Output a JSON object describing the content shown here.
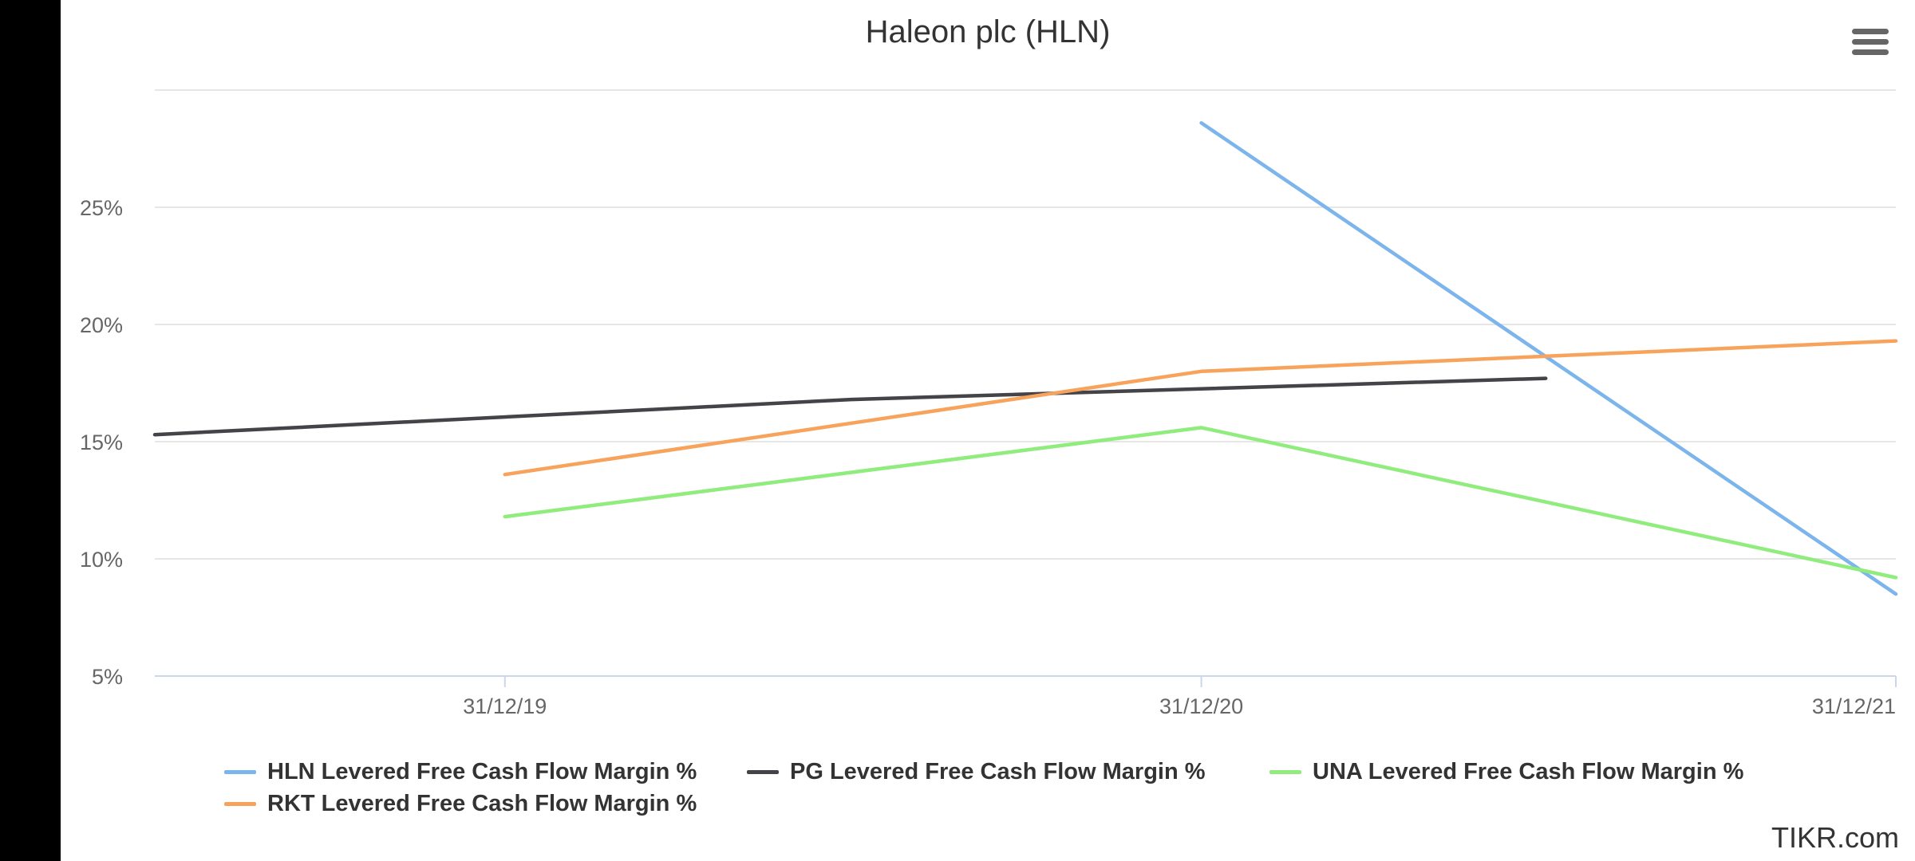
{
  "chart_data": {
    "type": "line",
    "title": "Haleon plc (HLN)",
    "x_ticks": [
      "31/12/19",
      "31/12/20",
      "31/12/21"
    ],
    "x_range": [
      "2019-06-30",
      "2021-12-31"
    ],
    "y_ticks": [
      "5%",
      "10%",
      "15%",
      "20%",
      "25%"
    ],
    "ylim": [
      5,
      30
    ],
    "grid": true,
    "legend_position": "bottom",
    "series": [
      {
        "name": "HLN Levered Free Cash Flow Margin %",
        "color": "#7cb5ec",
        "points": [
          {
            "x": "2020-12-31",
            "y": 28.6
          },
          {
            "x": "2021-12-31",
            "y": 8.5
          }
        ]
      },
      {
        "name": "PG Levered Free Cash Flow Margin %",
        "color": "#434348",
        "points": [
          {
            "x": "2019-06-30",
            "y": 15.3
          },
          {
            "x": "2020-06-30",
            "y": 16.8
          },
          {
            "x": "2021-06-30",
            "y": 17.7
          }
        ]
      },
      {
        "name": "UNA Levered Free Cash Flow Margin %",
        "color": "#90ed7d",
        "points": [
          {
            "x": "2019-12-31",
            "y": 11.8
          },
          {
            "x": "2020-12-31",
            "y": 15.6
          },
          {
            "x": "2021-12-31",
            "y": 9.2
          }
        ]
      },
      {
        "name": "RKT Levered Free Cash Flow Margin %",
        "color": "#f7a35c",
        "points": [
          {
            "x": "2019-12-31",
            "y": 13.6
          },
          {
            "x": "2020-12-31",
            "y": 18.0
          },
          {
            "x": "2021-12-31",
            "y": 19.3
          }
        ]
      }
    ]
  },
  "menu": {
    "icon": "hamburger-menu-icon"
  },
  "credit": "TIKR.com"
}
